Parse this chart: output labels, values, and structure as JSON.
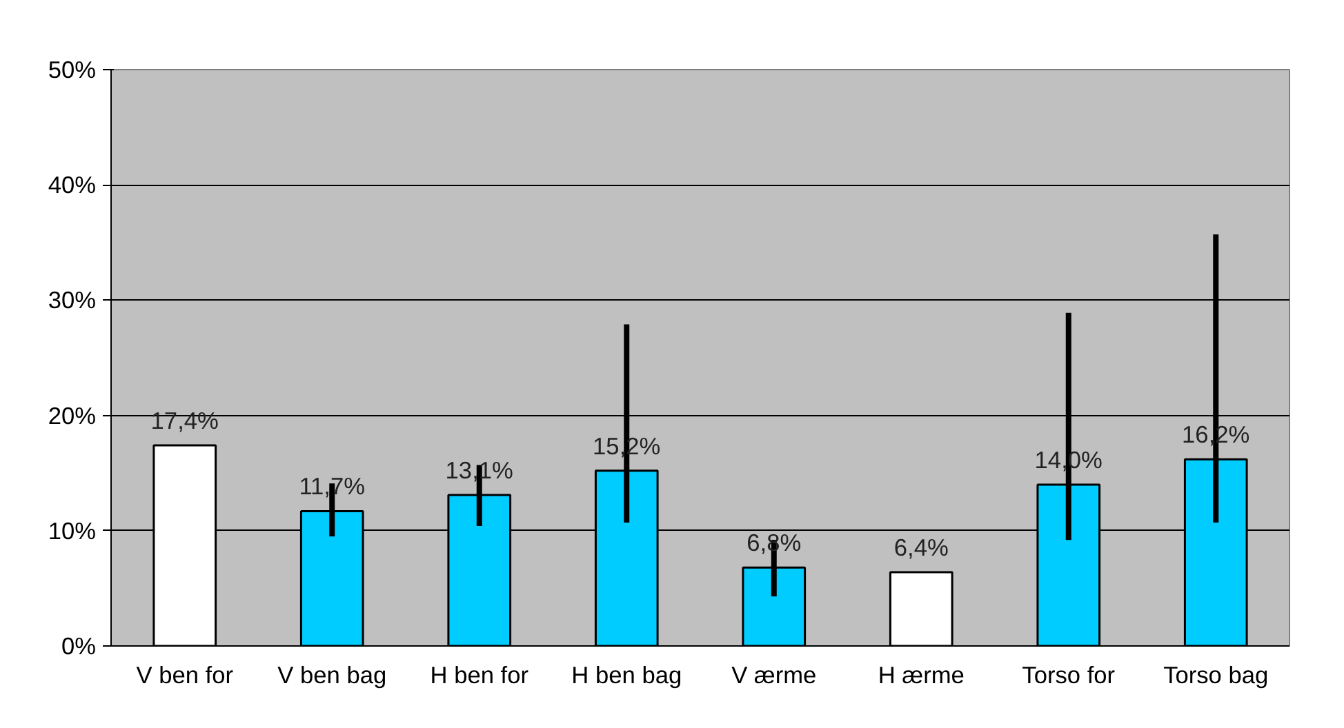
{
  "chart_data": {
    "type": "bar",
    "categories": [
      "V ben for",
      "V ben bag",
      "H ben for",
      "H ben bag",
      "V ærme",
      "H ærme",
      "Torso for",
      "Torso bag"
    ],
    "values": [
      17.4,
      11.7,
      13.1,
      15.2,
      6.8,
      6.4,
      14.0,
      16.2
    ],
    "value_labels": [
      "17,4%",
      "11,7%",
      "13,1%",
      "15,2%",
      "6,8%",
      "6,4%",
      "14,0%",
      "16,2%"
    ],
    "colors": [
      "#ffffff",
      "#00ccff",
      "#00ccff",
      "#00ccff",
      "#00ccff",
      "#ffffff",
      "#00ccff",
      "#00ccff"
    ],
    "errors": [
      null,
      [
        9.5,
        14.1
      ],
      [
        10.4,
        15.7
      ],
      [
        10.7,
        27.9
      ],
      [
        4.3,
        9.2
      ],
      null,
      [
        9.2,
        28.9
      ],
      [
        10.7,
        35.7
      ]
    ],
    "ylim": [
      0,
      50
    ],
    "yticks": [
      {
        "value": 0,
        "label": "0%"
      },
      {
        "value": 10,
        "label": "10%"
      },
      {
        "value": 20,
        "label": "20%"
      },
      {
        "value": 30,
        "label": "30%"
      },
      {
        "value": 40,
        "label": "40%"
      },
      {
        "value": 50,
        "label": "50%"
      }
    ],
    "grid": "y"
  }
}
